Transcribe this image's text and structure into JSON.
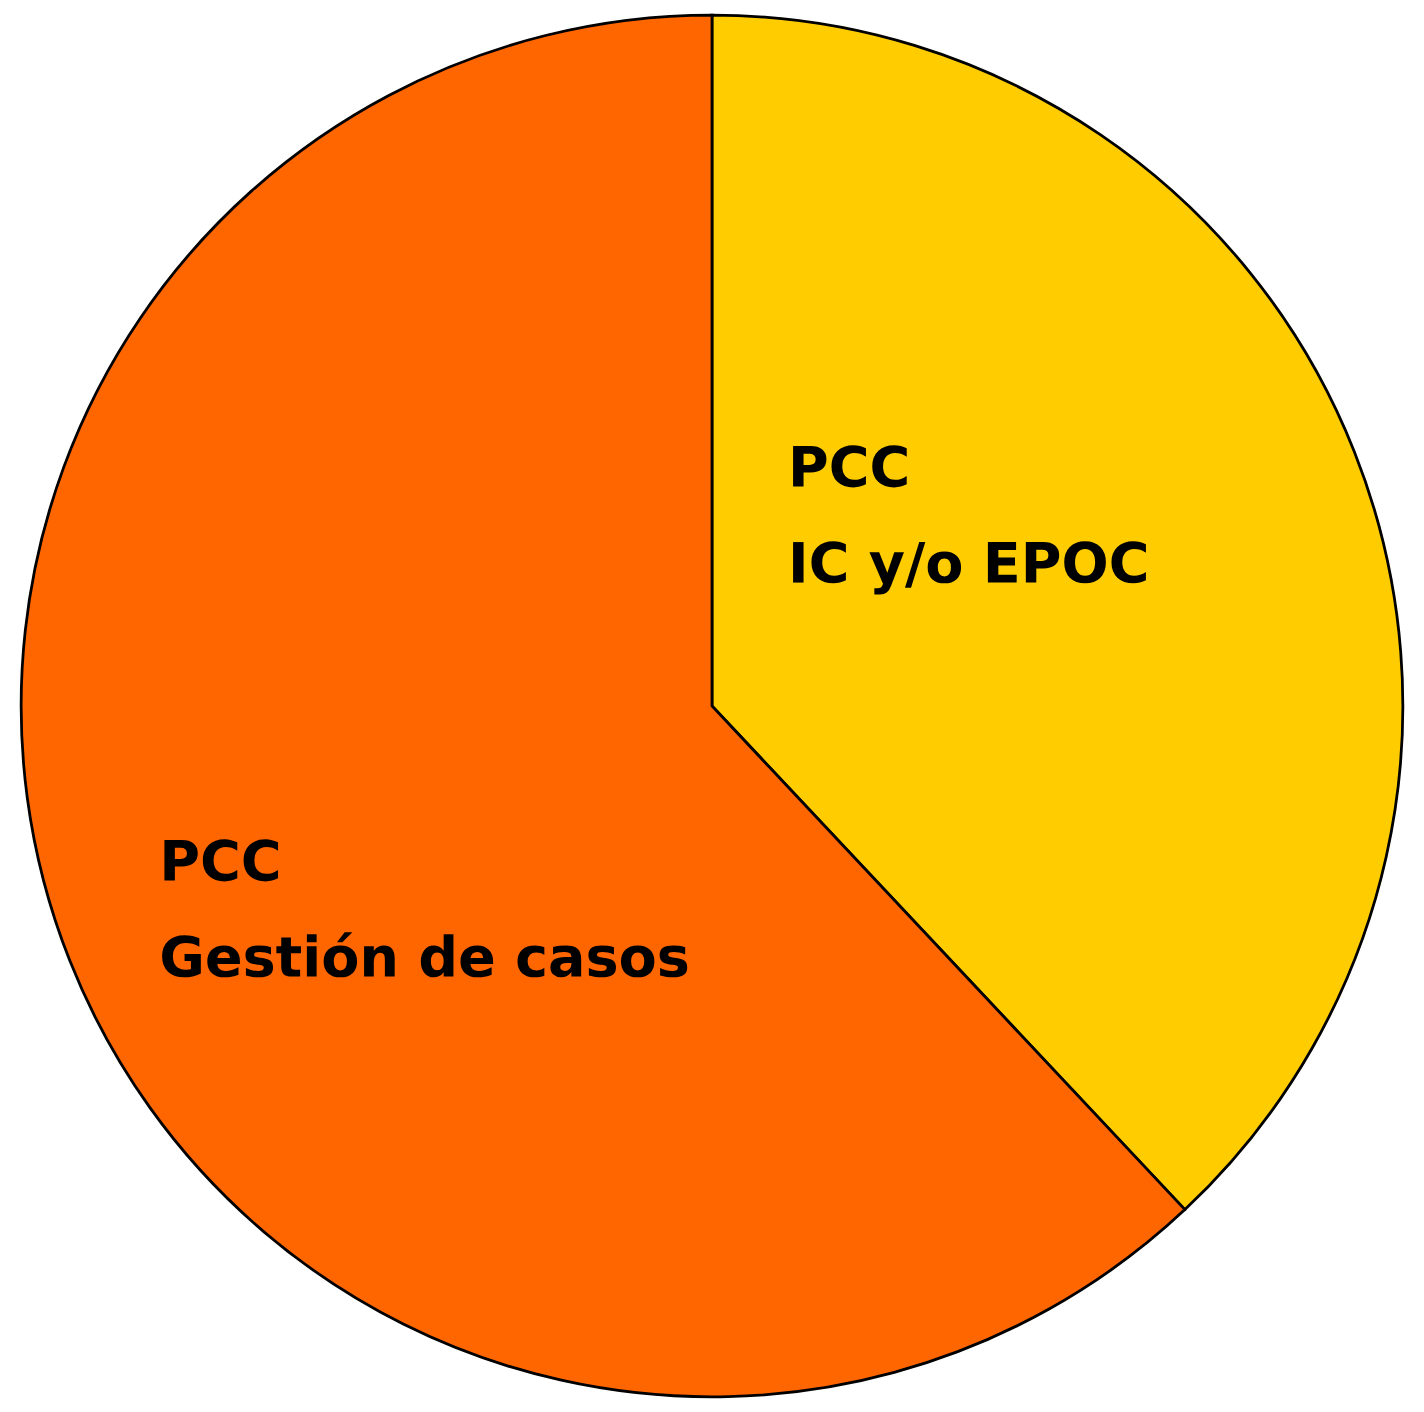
{
  "chart_data": {
    "type": "pie",
    "categories": [
      "PCC\nIC y/o EPOC",
      "PCC\nGestión de casos"
    ],
    "values": [
      38,
      62
    ],
    "colors": [
      "#ffcc00",
      "#ff6600"
    ],
    "legend": false
  }
}
